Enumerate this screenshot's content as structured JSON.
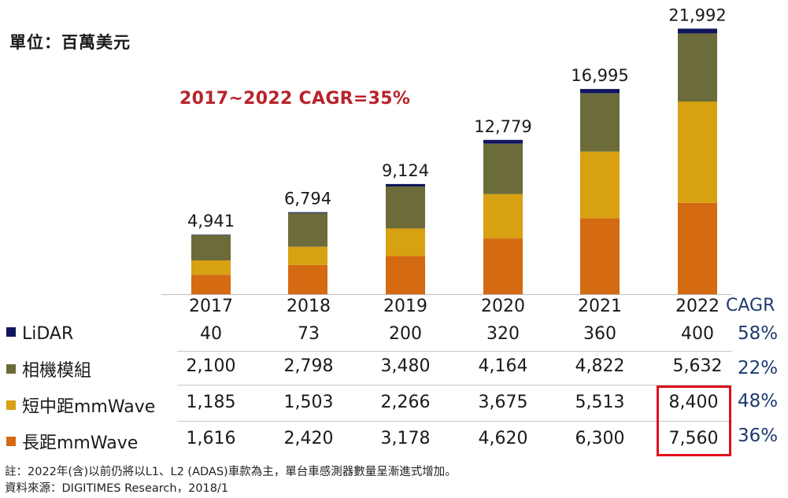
{
  "unit_label": "單位：百萬美元",
  "cagr_note": "2017~2022 CAGR=35%",
  "cagr_header": "CAGR",
  "colors": {
    "lidar": "#10165c",
    "camera": "#6b6c3a",
    "short_mmwave": "#d8a112",
    "long_mmwave": "#d46a12",
    "highlight": "#e0101a",
    "cagr_text": "#1f3a6e",
    "note_text": "#b8232b"
  },
  "chart_data": {
    "type": "bar",
    "stacked": true,
    "categories": [
      "2017",
      "2018",
      "2019",
      "2020",
      "2021",
      "2022"
    ],
    "totals": [
      "4,941",
      "6,794",
      "9,124",
      "12,779",
      "16,995",
      "21,992"
    ],
    "total_values": [
      4941,
      6794,
      9124,
      12779,
      16995,
      21992
    ],
    "series": [
      {
        "name": "長距mmWave",
        "values": [
          1616,
          2420,
          3178,
          4620,
          6300,
          7560
        ]
      },
      {
        "name": "短中距mmWave",
        "values": [
          1185,
          1503,
          2266,
          3675,
          5513,
          8400
        ]
      },
      {
        "name": "相機模組",
        "values": [
          2100,
          2798,
          3480,
          4164,
          4822,
          5632
        ]
      },
      {
        "name": "LiDAR",
        "values": [
          40,
          73,
          200,
          320,
          360,
          400
        ]
      }
    ]
  },
  "table": {
    "rows": [
      {
        "name": "LiDAR",
        "cells": [
          "40",
          "73",
          "200",
          "320",
          "360",
          "400"
        ],
        "cagr": "58%"
      },
      {
        "name": "相機模組",
        "cells": [
          "2,100",
          "2,798",
          "3,480",
          "4,164",
          "4,822",
          "5,632"
        ],
        "cagr": "22%"
      },
      {
        "name": "短中距mmWave",
        "cells": [
          "1,185",
          "1,503",
          "2,266",
          "3,675",
          "5,513",
          "8,400"
        ],
        "cagr": "48%"
      },
      {
        "name": "長距mmWave",
        "cells": [
          "1,616",
          "2,420",
          "3,178",
          "4,620",
          "6,300",
          "7,560"
        ],
        "cagr": "36%"
      }
    ]
  },
  "footnotes": [
    "註：2022年(含)以前仍將以L1、L2 (ADAS)車款為主，單台車感測器數量呈漸進式增加。",
    "資料來源：DIGITIMES Research，2018/1"
  ]
}
